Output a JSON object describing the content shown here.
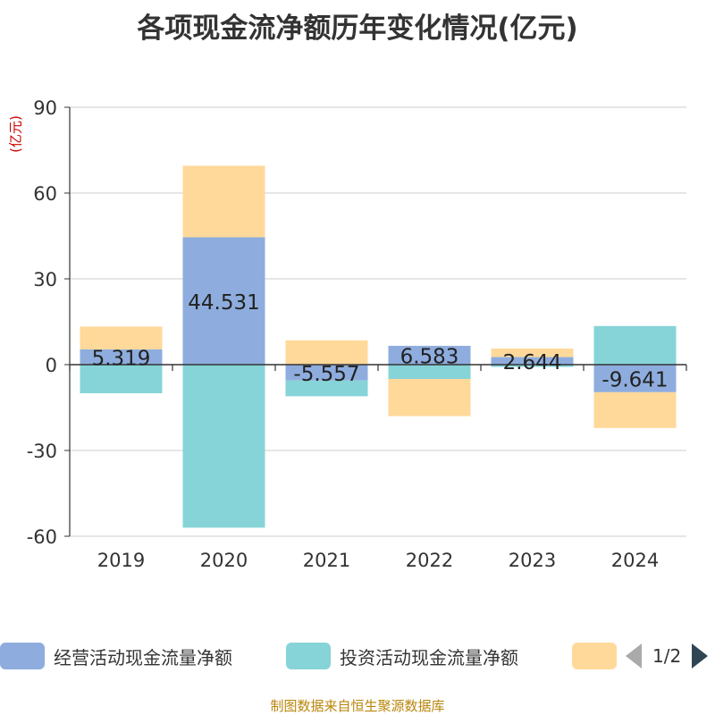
{
  "title": "各项现金流净额历年变化情况(亿元)",
  "unit_label": "(亿元)",
  "source": "制图数据来自恒生聚源数据库",
  "legend": {
    "pager": "1/2"
  },
  "colors": {
    "operating": "#8eadde",
    "investing": "#86d4d8",
    "financing": "#ffd99a",
    "axis": "#333333",
    "grid": "#cccccc",
    "unit": "#cc0000",
    "source": "#b8860b"
  },
  "chart_data": {
    "type": "bar",
    "stacked": true,
    "categories": [
      "2019",
      "2020",
      "2021",
      "2022",
      "2023",
      "2024"
    ],
    "ylim": [
      -60,
      90
    ],
    "yticks": [
      -60,
      -30,
      0,
      30,
      60,
      90
    ],
    "ylabel": "(亿元)",
    "grid": true,
    "legend_position": "bottom",
    "series": [
      {
        "name": "经营活动现金流量净额",
        "color": "#8eadde",
        "values": [
          5.319,
          44.531,
          -5.557,
          6.583,
          2.644,
          -9.641
        ],
        "labels": [
          "5.319",
          "44.531",
          "-5.557",
          "6.583",
          "2.644",
          "-9.641"
        ]
      },
      {
        "name": "投资活动现金流量净额",
        "color": "#86d4d8",
        "values": [
          -10.0,
          -57.0,
          -5.5,
          -5.0,
          -0.8,
          13.5
        ]
      },
      {
        "name": "",
        "color": "#ffd99a",
        "values": [
          8.0,
          25.0,
          8.5,
          -13.0,
          3.0,
          -12.5
        ]
      }
    ]
  }
}
